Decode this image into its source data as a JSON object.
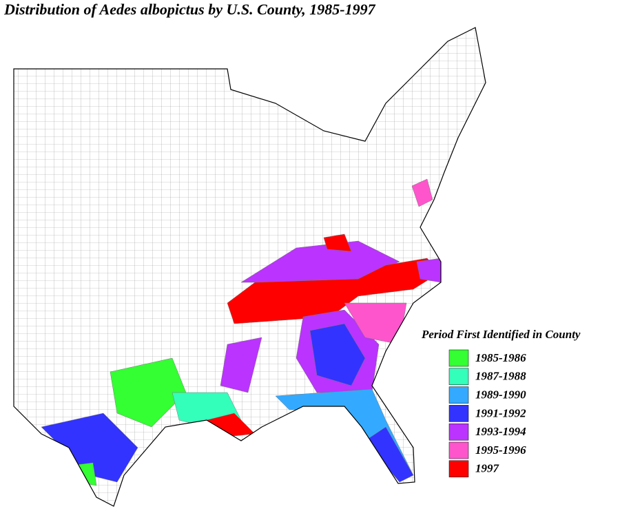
{
  "title": "Distribution of Aedes albopictus by U.S. County, 1985-1997",
  "legend": {
    "title": "Period First Identified in County",
    "items": [
      {
        "label": "1985-1986",
        "color": "#33ff33"
      },
      {
        "label": "1987-1988",
        "color": "#33ffbb"
      },
      {
        "label": "1989-1990",
        "color": "#33aaff"
      },
      {
        "label": "1991-1992",
        "color": "#3333ff"
      },
      {
        "label": "1993-1994",
        "color": "#bb33ff"
      },
      {
        "label": "1995-1996",
        "color": "#ff55cc"
      },
      {
        "label": "1997",
        "color": "#ff0000"
      }
    ]
  }
}
